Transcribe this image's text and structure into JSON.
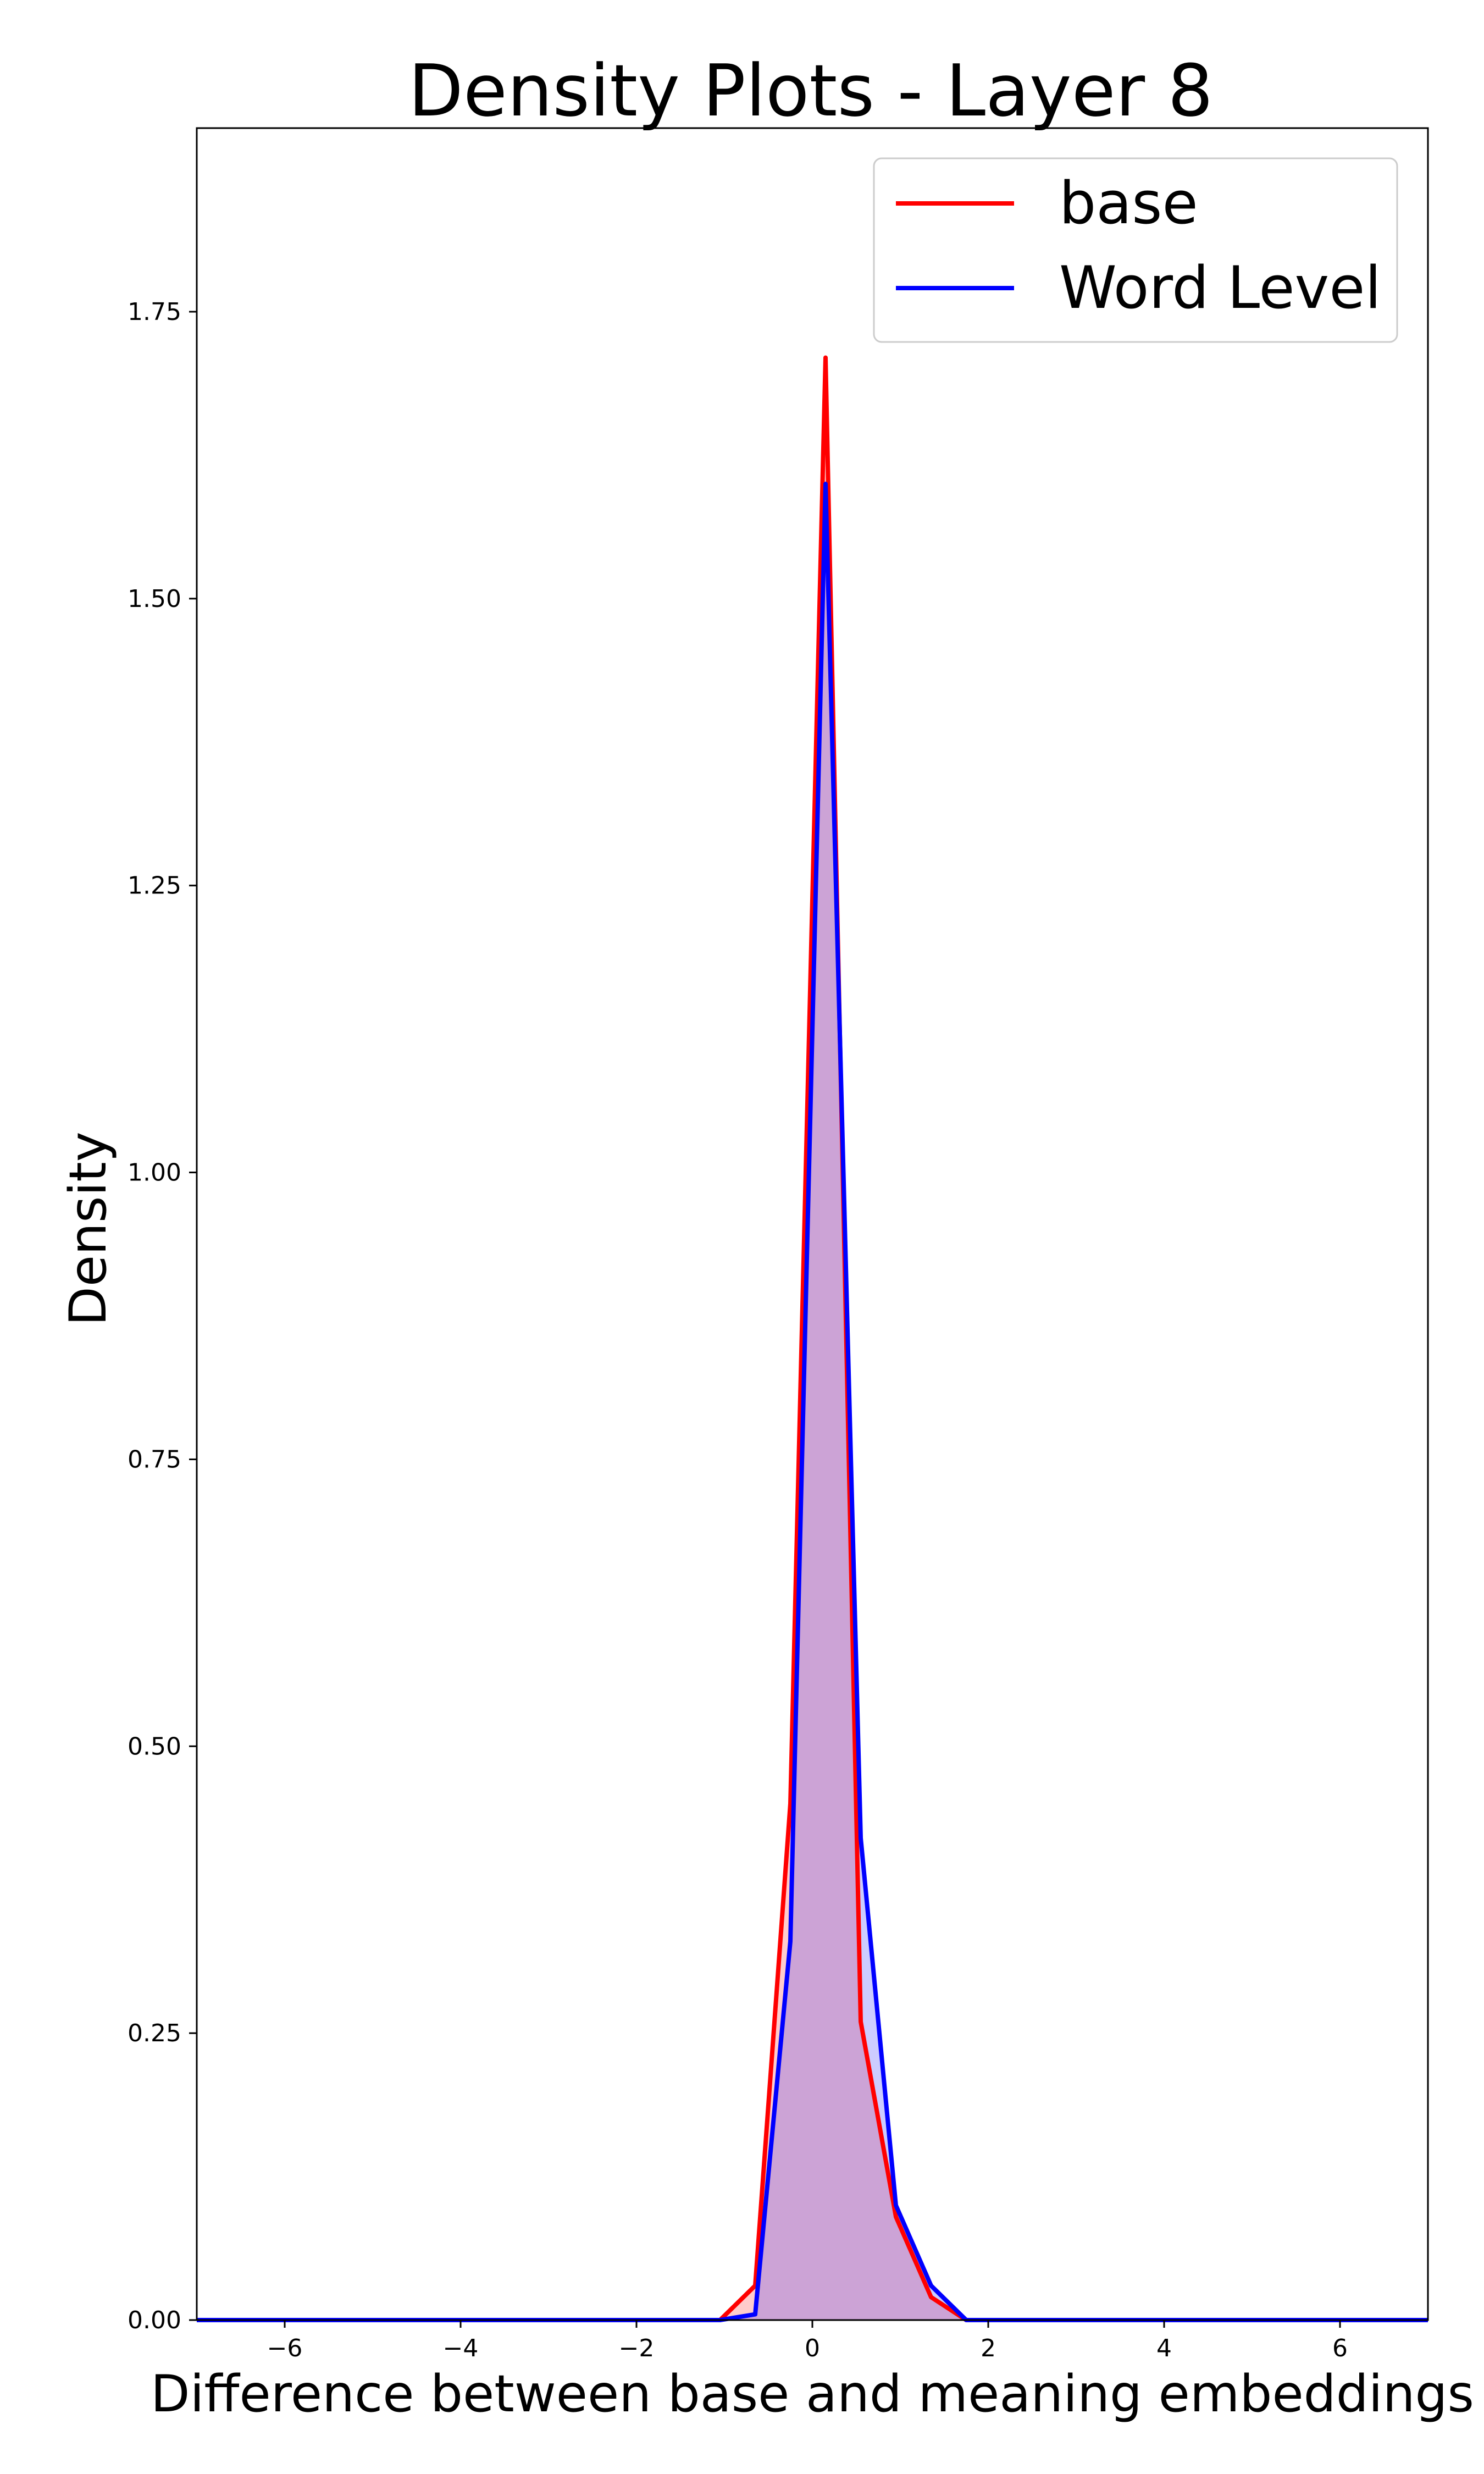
{
  "chart_data": {
    "type": "area",
    "title": "Density Plots - Layer 8",
    "xlabel": "Difference between base and meaning embeddings",
    "ylabel": "Density",
    "xlim": [
      -7,
      7
    ],
    "ylim": [
      0,
      1.91
    ],
    "xticks": [
      -6,
      -4,
      -2,
      0,
      2,
      4,
      6
    ],
    "xtick_labels": [
      "−6",
      "−4",
      "−2",
      "0",
      "2",
      "4",
      "6"
    ],
    "yticks": [
      0,
      0.25,
      0.5,
      0.75,
      1.0,
      1.25,
      1.5,
      1.75
    ],
    "ytick_labels": [
      "0.00",
      "0.25",
      "0.50",
      "0.75",
      "1.00",
      "1.25",
      "1.50",
      "1.75"
    ],
    "grid": false,
    "legend_position": "top-right",
    "series": [
      {
        "name": "base",
        "color": "#ff0000",
        "fill": "#ff0000",
        "x": [
          -7,
          -1.05,
          -0.65,
          -0.25,
          0.15,
          0.55,
          0.95,
          1.35,
          1.75,
          7
        ],
        "y": [
          0,
          0,
          0.03,
          0.45,
          1.71,
          0.26,
          0.09,
          0.02,
          0,
          0
        ]
      },
      {
        "name": "Word Level",
        "color": "#0000ff",
        "fill": "#0000ff",
        "x": [
          -7,
          -1.05,
          -0.65,
          -0.25,
          0.15,
          0.55,
          0.95,
          1.35,
          1.75,
          7
        ],
        "y": [
          0,
          0,
          0.005,
          0.33,
          1.6,
          0.42,
          0.1,
          0.03,
          0,
          0
        ]
      }
    ]
  }
}
